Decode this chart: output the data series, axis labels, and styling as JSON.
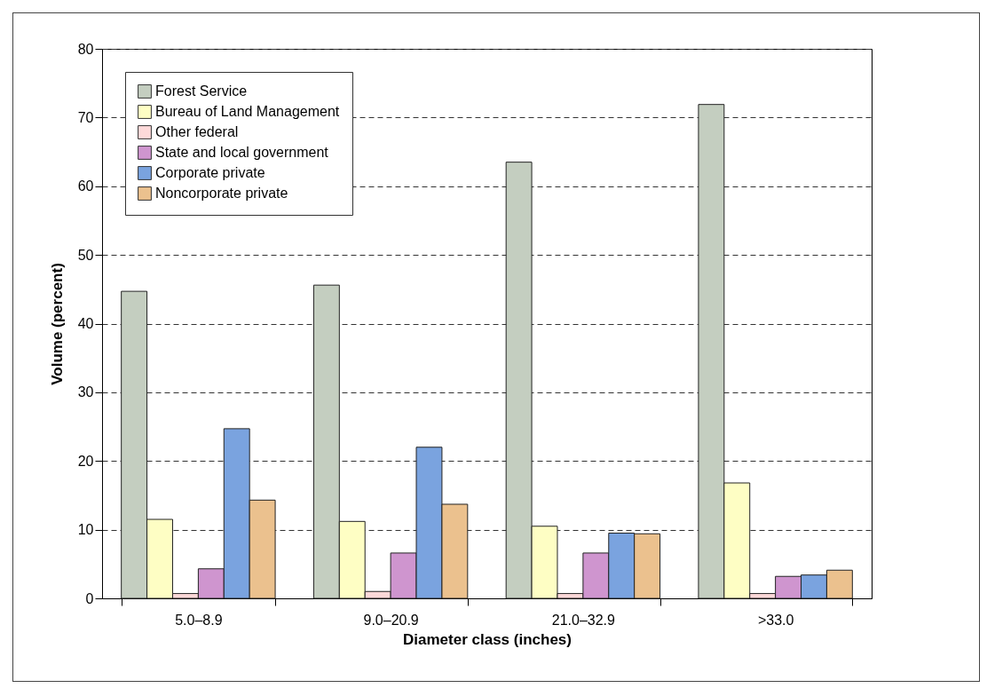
{
  "chart_data": {
    "type": "bar",
    "xlabel": "Diameter class (inches)",
    "ylabel": "Volume (percent)",
    "categories": [
      "5.0–8.9",
      "9.0–20.9",
      "21.0–32.9",
      ">33.0"
    ],
    "series": [
      {
        "name": "Forest Service",
        "color": "#c4cec0",
        "values": [
          44.7,
          45.6,
          63.5,
          71.9
        ]
      },
      {
        "name": "Bureau of Land Management",
        "color": "#fefec4",
        "values": [
          11.5,
          11.2,
          10.5,
          16.8
        ]
      },
      {
        "name": "Other federal",
        "color": "#fdd9d9",
        "values": [
          0.7,
          1.0,
          0.7,
          0.7
        ]
      },
      {
        "name": "State and local government",
        "color": "#cf95cf",
        "values": [
          4.3,
          6.6,
          6.6,
          3.2
        ]
      },
      {
        "name": "Corporate private",
        "color": "#7aa3df",
        "values": [
          24.7,
          22.0,
          9.5,
          3.4
        ]
      },
      {
        "name": "Noncorporate private",
        "color": "#ebc18e",
        "values": [
          14.3,
          13.7,
          9.4,
          4.1
        ]
      }
    ],
    "ylim": [
      0,
      80
    ],
    "yticks": [
      0,
      10,
      20,
      30,
      40,
      50,
      60,
      70,
      80
    ],
    "grid": "y",
    "legend": "top left"
  }
}
